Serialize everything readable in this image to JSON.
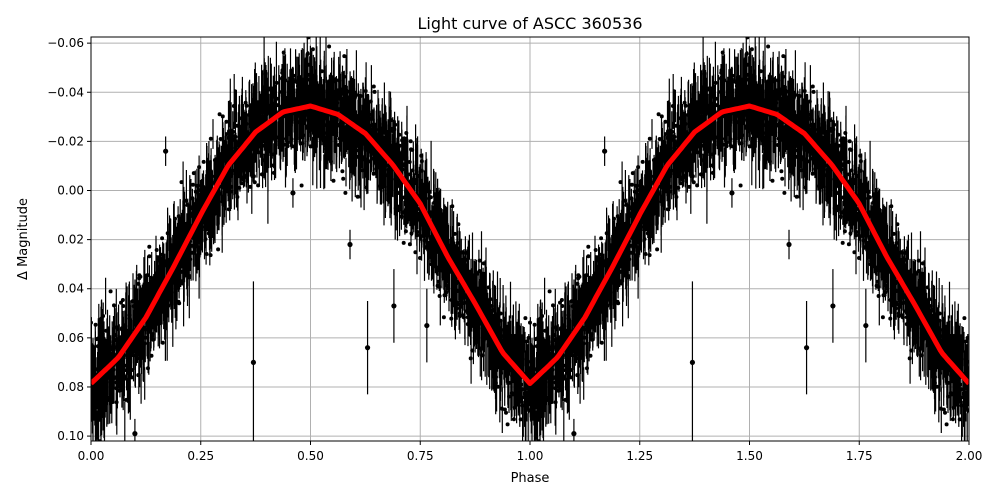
{
  "chart_data": {
    "type": "scatter",
    "title": "Light curve of ASCC 360536",
    "xlabel": "Phase",
    "ylabel": "Δ Magnitude",
    "xlim": [
      0,
      2
    ],
    "ylim": [
      0.102,
      -0.0625
    ],
    "y_inverted": true,
    "grid": true,
    "xticks": [
      "0.00",
      "0.25",
      "0.50",
      "0.75",
      "1.00",
      "1.25",
      "1.50",
      "1.75",
      "2.00"
    ],
    "xtick_values": [
      0,
      0.25,
      0.5,
      0.75,
      1,
      1.25,
      1.5,
      1.75,
      2
    ],
    "yticks": [
      "−0.06",
      "−0.04",
      "−0.02",
      "0.00",
      "0.02",
      "0.04",
      "0.06",
      "0.08",
      "0.10"
    ],
    "ytick_values": [
      -0.06,
      -0.04,
      -0.02,
      0,
      0.02,
      0.04,
      0.06,
      0.08,
      0.1
    ],
    "colors": {
      "points": "#000000",
      "binned_curve": "#ff0000",
      "grid": "#b0b0b0"
    },
    "binned_curve": {
      "phase": [
        0,
        0.0625,
        0.125,
        0.1875,
        0.25,
        0.3125,
        0.375,
        0.4375,
        0.5,
        0.5625,
        0.625,
        0.6875,
        0.75,
        0.8125,
        0.875,
        0.9375,
        1.0,
        1.0625,
        1.125,
        1.1875,
        1.25,
        1.3125,
        1.375,
        1.4375,
        1.5,
        1.5625,
        1.625,
        1.6875,
        1.75,
        1.8125,
        1.875,
        1.9375,
        2.0
      ],
      "magnitude": [
        0.0786,
        0.068,
        0.0517,
        0.0313,
        0.0098,
        -0.0102,
        -0.0238,
        -0.032,
        -0.0344,
        -0.031,
        -0.0232,
        -0.0105,
        0.0054,
        0.027,
        0.046,
        0.066,
        0.0786,
        0.068,
        0.0517,
        0.0313,
        0.0098,
        -0.0102,
        -0.0238,
        -0.032,
        -0.0344,
        -0.031,
        -0.0232,
        -0.0105,
        0.0054,
        0.027,
        0.046,
        0.066,
        0.0786
      ]
    },
    "scatter_spread": 0.009,
    "typical_error": 0.008,
    "outliers": [
      {
        "phase": 0.37,
        "magnitude": 0.07,
        "error": 0.033
      },
      {
        "phase": 0.63,
        "magnitude": 0.064,
        "error": 0.019
      },
      {
        "phase": 0.69,
        "magnitude": 0.047,
        "error": 0.015
      },
      {
        "phase": 0.765,
        "magnitude": 0.055,
        "error": 0.015
      },
      {
        "phase": 0.1,
        "magnitude": 0.099,
        "error": 0.006
      },
      {
        "phase": 0.17,
        "magnitude": -0.016,
        "error": 0.006
      },
      {
        "phase": 0.59,
        "magnitude": 0.022,
        "error": 0.006
      },
      {
        "phase": 0.46,
        "magnitude": 0.001,
        "error": 0.006
      },
      {
        "phase": 1.37,
        "magnitude": 0.07,
        "error": 0.033
      },
      {
        "phase": 1.63,
        "magnitude": 0.064,
        "error": 0.019
      },
      {
        "phase": 1.69,
        "magnitude": 0.047,
        "error": 0.015
      },
      {
        "phase": 1.765,
        "magnitude": 0.055,
        "error": 0.015
      },
      {
        "phase": 1.1,
        "magnitude": 0.099,
        "error": 0.006
      },
      {
        "phase": 1.17,
        "magnitude": -0.016,
        "error": 0.006
      },
      {
        "phase": 1.59,
        "magnitude": 0.022,
        "error": 0.006
      },
      {
        "phase": 1.46,
        "magnitude": 0.001,
        "error": 0.006
      }
    ]
  }
}
